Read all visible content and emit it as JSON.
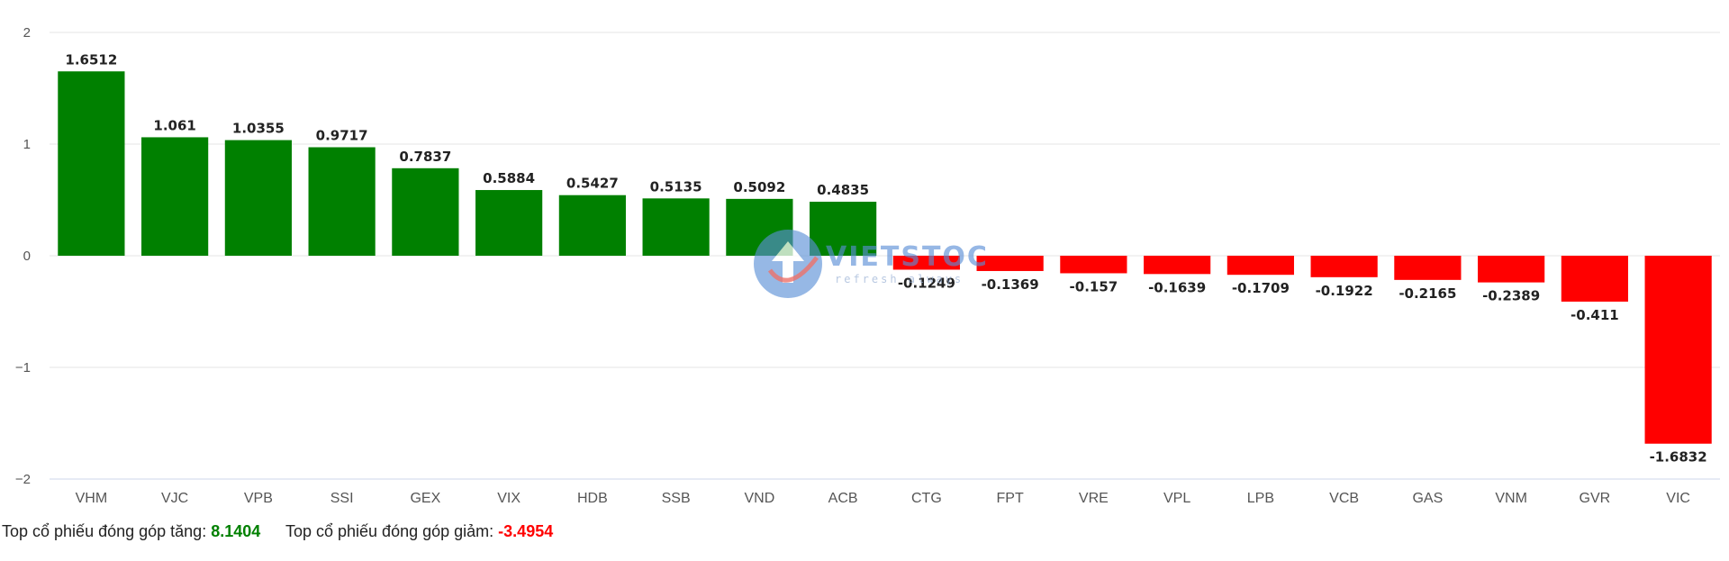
{
  "chart_data": {
    "type": "bar",
    "categories": [
      "VHM",
      "VJC",
      "VPB",
      "SSI",
      "GEX",
      "VIX",
      "HDB",
      "SSB",
      "VND",
      "ACB",
      "CTG",
      "FPT",
      "VRE",
      "VPL",
      "LPB",
      "VCB",
      "GAS",
      "VNM",
      "GVR",
      "VIC"
    ],
    "values": [
      1.6512,
      1.061,
      1.0355,
      0.9717,
      0.7837,
      0.5884,
      0.5427,
      0.5135,
      0.5092,
      0.4835,
      -0.1249,
      -0.1369,
      -0.157,
      -0.1639,
      -0.1709,
      -0.1922,
      -0.2165,
      -0.2389,
      -0.411,
      -1.6832
    ],
    "labels": [
      "1.6512",
      "1.061",
      "1.0355",
      "0.9717",
      "0.7837",
      "0.5884",
      "0.5427",
      "0.5135",
      "0.5092",
      "0.4835",
      "-0.1249",
      "-0.1369",
      "-0.157",
      "-0.1639",
      "-0.1709",
      "-0.1922",
      "-0.2165",
      "-0.2389",
      "-0.411",
      "-1.6832"
    ],
    "ylim": [
      -2,
      2
    ],
    "yticks": [
      2,
      1,
      0,
      -1,
      -2
    ],
    "ytick_labels": [
      "2",
      "1",
      "0",
      "−1",
      "−2"
    ],
    "grid": true,
    "colors": {
      "positive": "#008000",
      "negative": "#ff0000"
    }
  },
  "summary": {
    "up_label": "Top cổ phiếu đóng góp tăng:",
    "up_value": "8.1404",
    "down_label": "Top cổ phiếu đóng góp giảm:",
    "down_value": "-3.4954"
  },
  "watermark": {
    "brand": "VIETSTOCK",
    "tagline": "refresh always"
  }
}
